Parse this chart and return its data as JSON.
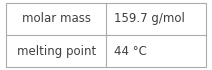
{
  "rows": [
    {
      "label": "molar mass",
      "value": "159.7 g/mol"
    },
    {
      "label": "melting point",
      "value": "44 °C"
    }
  ],
  "col_split": 0.5,
  "background_color": "#ffffff",
  "border_color": "#aaaaaa",
  "text_color": "#404040",
  "font_size": 8.5,
  "fig_width": 2.12,
  "fig_height": 0.7,
  "dpi": 100
}
